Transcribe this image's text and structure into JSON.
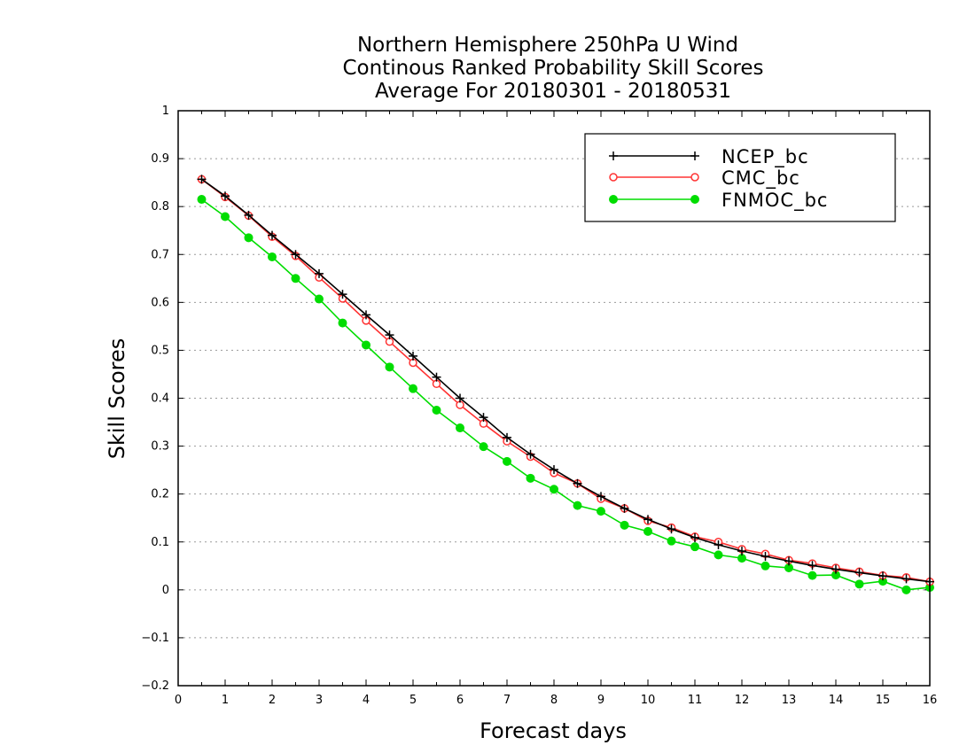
{
  "chart_data": {
    "type": "line",
    "title_lines": [
      "Northern Hemisphere 250hPa U Wind",
      "Continous Ranked Probability Skill Scores",
      "Average For 20180301 - 20180531"
    ],
    "xlabel": "Forecast days",
    "ylabel": "Skill Scores",
    "xlim": [
      0,
      16
    ],
    "ylim": [
      -0.2,
      1
    ],
    "xticks": [
      "0",
      "1",
      "2",
      "3",
      "4",
      "5",
      "6",
      "7",
      "8",
      "9",
      "10",
      "11",
      "12",
      "13",
      "14",
      "15",
      "16"
    ],
    "yticks": [
      "−0.2",
      "−0.1",
      "0",
      "0.1",
      "0.2",
      "0.3",
      "0.4",
      "0.5",
      "0.6",
      "0.7",
      "0.8",
      "0.9",
      "1"
    ],
    "grid": "horizontal-dotted",
    "legend_position": "top-right",
    "x": [
      0.5,
      1,
      1.5,
      2,
      2.5,
      3,
      3.5,
      4,
      4.5,
      5,
      5.5,
      6,
      6.5,
      7,
      7.5,
      8,
      8.5,
      9,
      9.5,
      10,
      10.5,
      11,
      11.5,
      12,
      12.5,
      13,
      13.5,
      14,
      14.5,
      15,
      15.5,
      16
    ],
    "series": [
      {
        "name": "NCEP_bc",
        "color": "#000000",
        "marker": "plus",
        "values": [
          0.857,
          0.822,
          0.782,
          0.74,
          0.7,
          0.66,
          0.617,
          0.574,
          0.532,
          0.488,
          0.444,
          0.4,
          0.36,
          0.318,
          0.283,
          0.251,
          0.222,
          0.195,
          0.17,
          0.147,
          0.127,
          0.109,
          0.094,
          0.081,
          0.07,
          0.06,
          0.051,
          0.043,
          0.036,
          0.029,
          0.023,
          0.017
        ]
      },
      {
        "name": "CMC_bc",
        "color": "#ff3333",
        "marker": "open-circle",
        "values": [
          0.857,
          0.82,
          0.781,
          0.737,
          0.697,
          0.652,
          0.608,
          0.562,
          0.518,
          0.474,
          0.43,
          0.386,
          0.347,
          0.31,
          0.278,
          0.244,
          0.222,
          0.19,
          0.17,
          0.144,
          0.13,
          0.111,
          0.1,
          0.085,
          0.075,
          0.062,
          0.055,
          0.046,
          0.038,
          0.03,
          0.026,
          0.017
        ]
      },
      {
        "name": "FNMOC_bc",
        "color": "#00dd00",
        "marker": "filled-circle",
        "values": [
          0.815,
          0.779,
          0.735,
          0.695,
          0.65,
          0.607,
          0.557,
          0.511,
          0.465,
          0.42,
          0.375,
          0.338,
          0.299,
          0.268,
          0.233,
          0.21,
          0.176,
          0.164,
          0.135,
          0.122,
          0.102,
          0.09,
          0.073,
          0.066,
          0.05,
          0.046,
          0.03,
          0.031,
          0.012,
          0.018,
          0.0,
          0.005
        ]
      }
    ]
  }
}
